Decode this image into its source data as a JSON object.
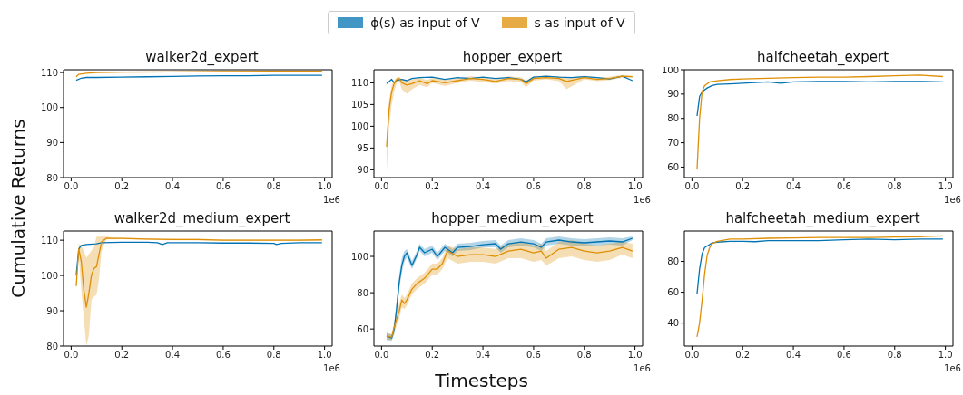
{
  "chart_data": [
    {
      "type": "line",
      "title": "walker2d_expert",
      "legend": "top",
      "annotations": [
        "1e6"
      ],
      "xlim": [
        -0.03,
        1.03
      ],
      "xticks": [
        {
          "value": 0,
          "label": "0.0"
        },
        {
          "value": 0.2,
          "label": "0.2"
        },
        {
          "value": 0.4,
          "label": "0.4"
        },
        {
          "value": 0.6,
          "label": "0.6"
        },
        {
          "value": 0.8,
          "label": "0.8"
        },
        {
          "value": 1,
          "label": "1.0"
        }
      ],
      "ylim": [
        80,
        110.8
      ],
      "yticks": [
        80,
        90,
        100,
        110
      ],
      "series": [
        {
          "name": "ϕ(s) as input of V",
          "color": "#0173b2",
          "x": [
            0.02,
            0.04,
            0.06,
            0.1,
            0.2,
            0.3,
            0.4,
            0.5,
            0.6,
            0.7,
            0.8,
            0.9,
            0.99
          ],
          "values": [
            107.8,
            108.4,
            108.6,
            108.6,
            108.7,
            108.8,
            108.9,
            109.0,
            109.1,
            109.1,
            109.2,
            109.2,
            109.2
          ]
        },
        {
          "name": "s as input of V",
          "color": "#de8f05",
          "x": [
            0.02,
            0.03,
            0.06,
            0.1,
            0.2,
            0.4,
            0.6,
            0.8,
            0.99
          ],
          "values": [
            108.8,
            109.5,
            109.8,
            110.0,
            110.1,
            110.2,
            110.3,
            110.4,
            110.4
          ]
        }
      ]
    },
    {
      "type": "line",
      "title": "hopper_expert",
      "annotations": [
        "1e6"
      ],
      "xlim": [
        -0.03,
        1.03
      ],
      "xticks": [
        {
          "value": 0,
          "label": "0.0"
        },
        {
          "value": 0.2,
          "label": "0.2"
        },
        {
          "value": 0.4,
          "label": "0.4"
        },
        {
          "value": 0.6,
          "label": "0.6"
        },
        {
          "value": 0.8,
          "label": "0.8"
        },
        {
          "value": 1,
          "label": "1.0"
        }
      ],
      "ylim": [
        88.2,
        113
      ],
      "yticks": [
        90,
        95,
        100,
        105,
        110
      ],
      "series": [
        {
          "color": "#0173b2",
          "x": [
            0.02,
            0.03,
            0.04,
            0.05,
            0.06,
            0.08,
            0.1,
            0.12,
            0.15,
            0.2,
            0.25,
            0.3,
            0.35,
            0.4,
            0.45,
            0.5,
            0.55,
            0.57,
            0.6,
            0.65,
            0.7,
            0.75,
            0.8,
            0.85,
            0.9,
            0.95,
            0.99
          ],
          "values": [
            109.8,
            110.3,
            110.8,
            110.0,
            110.6,
            110.8,
            110.5,
            111.0,
            111.2,
            111.3,
            110.8,
            111.2,
            111.0,
            111.3,
            111.0,
            111.2,
            110.8,
            110.2,
            111.3,
            111.5,
            111.3,
            111.2,
            111.4,
            111.2,
            110.9,
            111.5,
            110.5
          ]
        },
        {
          "color": "#de8f05",
          "x": [
            0.02,
            0.03,
            0.04,
            0.05,
            0.06,
            0.07,
            0.08,
            0.1,
            0.12,
            0.15,
            0.18,
            0.2,
            0.25,
            0.3,
            0.35,
            0.4,
            0.45,
            0.5,
            0.55,
            0.57,
            0.6,
            0.65,
            0.7,
            0.73,
            0.8,
            0.85,
            0.9,
            0.95,
            0.99
          ],
          "values": [
            95.3,
            104,
            108,
            109.8,
            110.8,
            111,
            110,
            109.5,
            109.8,
            110.5,
            109.8,
            110.5,
            110.0,
            110.5,
            111.0,
            110.8,
            110.3,
            111.0,
            110.8,
            109.8,
            111.0,
            111.2,
            111.0,
            110.3,
            111.2,
            110.8,
            111.0,
            111.5,
            111.4
          ],
          "lower": [
            89.5,
            100,
            105,
            108,
            110,
            110.3,
            108.5,
            107.5,
            108.5,
            109.5,
            109,
            110,
            109.3,
            110,
            110.5,
            110.2,
            109.8,
            110.4,
            110.2,
            109,
            110.5,
            110.8,
            110.4,
            108.5,
            110.8,
            110.4,
            110.6,
            111.2,
            111.2
          ],
          "upper": [
            97,
            106,
            109.5,
            110.5,
            111.3,
            111.4,
            110.8,
            110.5,
            110.8,
            111.2,
            110.6,
            111.2,
            110.7,
            111,
            111.5,
            111.3,
            110.8,
            111.5,
            111.3,
            110.6,
            111.5,
            111.6,
            111.5,
            111.2,
            111.6,
            111.2,
            111.4,
            111.8,
            111.6
          ]
        }
      ]
    },
    {
      "type": "line",
      "title": "halfcheetah_expert",
      "annotations": [
        "1e6"
      ],
      "xlim": [
        -0.03,
        1.03
      ],
      "xticks": [
        {
          "value": 0,
          "label": "0.0"
        },
        {
          "value": 0.2,
          "label": "0.2"
        },
        {
          "value": 0.4,
          "label": "0.4"
        },
        {
          "value": 0.6,
          "label": "0.6"
        },
        {
          "value": 0.8,
          "label": "0.8"
        },
        {
          "value": 1,
          "label": "1.0"
        }
      ],
      "ylim": [
        55.7,
        100
      ],
      "yticks": [
        60,
        70,
        80,
        90,
        100
      ],
      "series": [
        {
          "color": "#0173b2",
          "x": [
            0.02,
            0.03,
            0.04,
            0.06,
            0.08,
            0.1,
            0.15,
            0.2,
            0.3,
            0.35,
            0.4,
            0.5,
            0.6,
            0.7,
            0.8,
            0.9,
            0.99
          ],
          "values": [
            81,
            89,
            91,
            92.5,
            93.5,
            94,
            94.2,
            94.5,
            95,
            94.5,
            95,
            95.2,
            95.2,
            95,
            95.2,
            95.2,
            95
          ]
        },
        {
          "color": "#de8f05",
          "x": [
            0.02,
            0.03,
            0.04,
            0.05,
            0.07,
            0.1,
            0.15,
            0.2,
            0.3,
            0.4,
            0.5,
            0.6,
            0.7,
            0.8,
            0.9,
            0.99
          ],
          "values": [
            59,
            80,
            91,
            93.5,
            95,
            95.5,
            96,
            96.2,
            96.5,
            96.8,
            97,
            97,
            97.2,
            97.5,
            97.8,
            97.2
          ]
        }
      ]
    },
    {
      "type": "line",
      "title": "walker2d_medium_expert",
      "ylabel": "Cumulative Returns",
      "annotations": [
        "1e6"
      ],
      "xlim": [
        -0.03,
        1.03
      ],
      "xticks": [
        {
          "value": 0,
          "label": "0.0"
        },
        {
          "value": 0.2,
          "label": "0.2"
        },
        {
          "value": 0.4,
          "label": "0.4"
        },
        {
          "value": 0.6,
          "label": "0.6"
        },
        {
          "value": 0.8,
          "label": "0.8"
        },
        {
          "value": 1,
          "label": "1.0"
        }
      ],
      "ylim": [
        80,
        112.6
      ],
      "yticks": [
        80,
        90,
        100,
        110
      ],
      "series": [
        {
          "color": "#0173b2",
          "x": [
            0.02,
            0.03,
            0.04,
            0.06,
            0.1,
            0.12,
            0.2,
            0.3,
            0.34,
            0.36,
            0.38,
            0.5,
            0.6,
            0.7,
            0.8,
            0.81,
            0.83,
            0.9,
            0.99
          ],
          "values": [
            100,
            107.5,
            108.5,
            108.8,
            109,
            109.3,
            109.4,
            109.4,
            109.3,
            108.8,
            109.3,
            109.3,
            109.2,
            109.2,
            109.1,
            108.8,
            109.1,
            109.3,
            109.3
          ]
        },
        {
          "color": "#de8f05",
          "x": [
            0.02,
            0.03,
            0.04,
            0.05,
            0.06,
            0.07,
            0.08,
            0.09,
            0.1,
            0.11,
            0.12,
            0.14,
            0.16,
            0.2,
            0.3,
            0.4,
            0.5,
            0.6,
            0.7,
            0.8,
            0.9,
            0.99
          ],
          "values": [
            97,
            107.5,
            104,
            96,
            91,
            95,
            100,
            102,
            102.5,
            106,
            109.5,
            110.6,
            110.5,
            110.5,
            110.3,
            110.2,
            110.2,
            110,
            110,
            110,
            110,
            110.1
          ],
          "lower": [
            96,
            106,
            96,
            88,
            80,
            83,
            93,
            94,
            94.5,
            99,
            107,
            110.2,
            110.2,
            110.3,
            110.1,
            110,
            110,
            109.8,
            109.8,
            109.8,
            109.8,
            109.9
          ],
          "upper": [
            98,
            109,
            108.5,
            107,
            105,
            106,
            107,
            108,
            111,
            111,
            111,
            111,
            110.8,
            110.7,
            110.5,
            110.4,
            110.4,
            110.2,
            110.2,
            110.2,
            110.2,
            110.3
          ]
        }
      ]
    },
    {
      "type": "line",
      "title": "hopper_medium_expert",
      "xlabel": "Timesteps",
      "annotations": [
        "1e6"
      ],
      "xlim": [
        -0.03,
        1.03
      ],
      "xticks": [
        {
          "value": 0,
          "label": "0.0"
        },
        {
          "value": 0.2,
          "label": "0.2"
        },
        {
          "value": 0.4,
          "label": "0.4"
        },
        {
          "value": 0.6,
          "label": "0.6"
        },
        {
          "value": 0.8,
          "label": "0.8"
        },
        {
          "value": 1,
          "label": "1.0"
        }
      ],
      "ylim": [
        50.6,
        114
      ],
      "yticks": [
        60,
        80,
        100
      ],
      "series": [
        {
          "color": "#0173b2",
          "x": [
            0.02,
            0.04,
            0.05,
            0.06,
            0.07,
            0.08,
            0.09,
            0.1,
            0.12,
            0.14,
            0.15,
            0.17,
            0.2,
            0.22,
            0.25,
            0.28,
            0.3,
            0.35,
            0.4,
            0.45,
            0.47,
            0.5,
            0.55,
            0.6,
            0.63,
            0.65,
            0.7,
            0.75,
            0.8,
            0.85,
            0.9,
            0.95,
            0.99
          ],
          "values": [
            56,
            55,
            60,
            72,
            86,
            95,
            100,
            102,
            95,
            101,
            105,
            102,
            104,
            100,
            105,
            102,
            105,
            105.5,
            106.5,
            107,
            104,
            107,
            108,
            107,
            105,
            108,
            109,
            108,
            107.5,
            108,
            108.5,
            108,
            110
          ],
          "lower": [
            54,
            53.5,
            57,
            68,
            82,
            91,
            97,
            99.5,
            93,
            99,
            103,
            100,
            102,
            98,
            103,
            100,
            103,
            103.5,
            105,
            105,
            102,
            105,
            106,
            105,
            103,
            106,
            107,
            106,
            105.5,
            106,
            106.5,
            106,
            109
          ],
          "upper": [
            58,
            57,
            63,
            76,
            90,
            99,
            103,
            104,
            97.5,
            103,
            107,
            104,
            106,
            102,
            107,
            104,
            107,
            107.5,
            108.5,
            109,
            106,
            109,
            110,
            109,
            107,
            110,
            111,
            110,
            109.5,
            110,
            110.5,
            110,
            111
          ]
        },
        {
          "color": "#de8f05",
          "x": [
            0.02,
            0.04,
            0.05,
            0.07,
            0.08,
            0.09,
            0.1,
            0.12,
            0.14,
            0.17,
            0.2,
            0.22,
            0.24,
            0.26,
            0.3,
            0.35,
            0.4,
            0.45,
            0.5,
            0.55,
            0.6,
            0.63,
            0.65,
            0.7,
            0.75,
            0.8,
            0.85,
            0.9,
            0.95,
            0.99
          ],
          "values": [
            56,
            55.5,
            61,
            70,
            76,
            74,
            76,
            82,
            85,
            88,
            93,
            93,
            96,
            103,
            100,
            101,
            101,
            100,
            103,
            104,
            102,
            103,
            99,
            104,
            105,
            103,
            102,
            103,
            105,
            103
          ],
          "lower": [
            54,
            54,
            58,
            66,
            72,
            71,
            73,
            79,
            82,
            85,
            90,
            90,
            93,
            99,
            96,
            97,
            97,
            96,
            99,
            99,
            97,
            98,
            95,
            99,
            100,
            98,
            97,
            98,
            101,
            99
          ],
          "upper": [
            58,
            57,
            64,
            74,
            79,
            77,
            79,
            85,
            88,
            91,
            96,
            96,
            99,
            106,
            104,
            105,
            105,
            104,
            107,
            108,
            106,
            107,
            103,
            108,
            109,
            107,
            106,
            107,
            108,
            107
          ]
        }
      ]
    },
    {
      "type": "line",
      "title": "halfcheetah_medium_expert",
      "annotations": [
        "1e6"
      ],
      "xlim": [
        -0.03,
        1.03
      ],
      "xticks": [
        {
          "value": 0,
          "label": "0.0"
        },
        {
          "value": 0.2,
          "label": "0.2"
        },
        {
          "value": 0.4,
          "label": "0.4"
        },
        {
          "value": 0.6,
          "label": "0.6"
        },
        {
          "value": 0.8,
          "label": "0.8"
        },
        {
          "value": 1,
          "label": "1.0"
        }
      ],
      "ylim": [
        25.1,
        99.7
      ],
      "yticks": [
        40,
        60,
        80
      ],
      "series": [
        {
          "color": "#0173b2",
          "x": [
            0.02,
            0.03,
            0.04,
            0.05,
            0.06,
            0.08,
            0.1,
            0.15,
            0.2,
            0.25,
            0.3,
            0.35,
            0.4,
            0.5,
            0.6,
            0.7,
            0.8,
            0.9,
            0.99
          ],
          "values": [
            59,
            75,
            85,
            89,
            90,
            92,
            92.5,
            93,
            93,
            92.8,
            93.5,
            93.5,
            93.5,
            93.5,
            94,
            94.5,
            94,
            94.5,
            94.5
          ]
        },
        {
          "color": "#de8f05",
          "x": [
            0.02,
            0.03,
            0.04,
            0.05,
            0.06,
            0.07,
            0.08,
            0.1,
            0.15,
            0.2,
            0.3,
            0.4,
            0.5,
            0.6,
            0.7,
            0.8,
            0.9,
            0.99
          ],
          "values": [
            31,
            40,
            55,
            72,
            84,
            89,
            91.5,
            93,
            94.5,
            94.5,
            95,
            95.2,
            95.5,
            95.5,
            95.5,
            95.8,
            96,
            96.5
          ]
        }
      ]
    }
  ]
}
